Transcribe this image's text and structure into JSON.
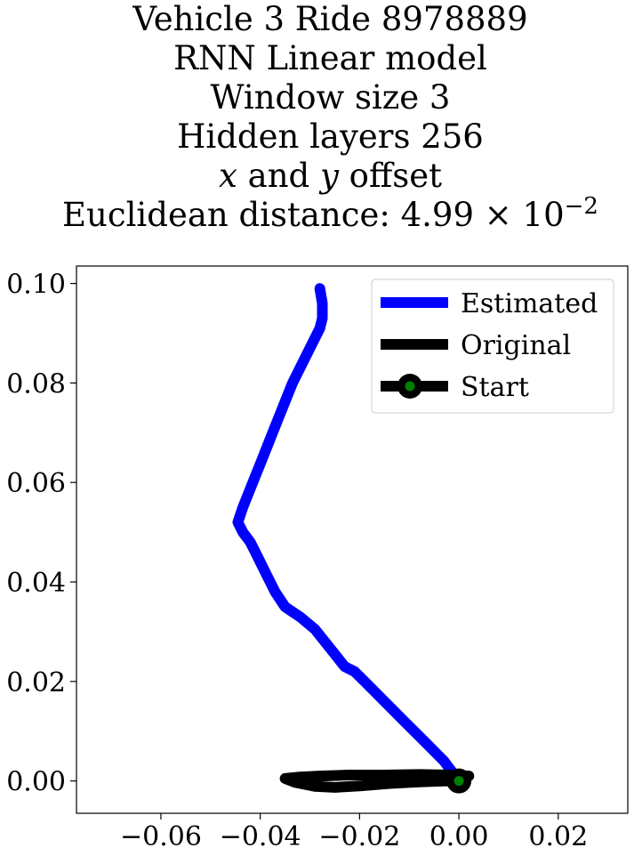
{
  "chart_data": {
    "type": "line",
    "title_lines": [
      "Vehicle 3 Ride 8978889",
      "RNN Linear model",
      "Window size 3",
      "Hidden layers 256",
      "x and y offset",
      "Euclidean distance: 4.99 × 10⁻²"
    ],
    "title_parts": {
      "offset_x": "x",
      "offset_and": " and ",
      "offset_y": "y",
      "offset_rest": " offset",
      "dist_prefix": "Euclidean distance: ",
      "dist_mantissa": "4.99",
      "dist_times": "×",
      "dist_base": "10",
      "dist_exp": "−2"
    },
    "xlim": [
      -0.077,
      0.034
    ],
    "ylim": [
      -0.0065,
      0.1035
    ],
    "x_ticks": [
      -0.06,
      -0.04,
      -0.02,
      0.0,
      0.02
    ],
    "x_tick_labels": [
      "−0.06",
      "−0.04",
      "−0.02",
      "0.00",
      "0.02"
    ],
    "y_ticks": [
      0.0,
      0.02,
      0.04,
      0.06,
      0.08,
      0.1
    ],
    "y_tick_labels": [
      "0.00",
      "0.02",
      "0.04",
      "0.06",
      "0.08",
      "0.10"
    ],
    "grid": false,
    "legend_position": "top-right",
    "series": [
      {
        "name": "Estimated",
        "color": "#0000ff",
        "x": [
          0.0,
          -0.003,
          -0.007,
          -0.011,
          -0.015,
          -0.019,
          -0.021,
          -0.023,
          -0.025,
          -0.027,
          -0.029,
          -0.032,
          -0.035,
          -0.037,
          -0.0385,
          -0.0405,
          -0.042,
          -0.0435,
          -0.0445,
          -0.0435,
          -0.0415,
          -0.0395,
          -0.0375,
          -0.0355,
          -0.0335,
          -0.032,
          -0.03,
          -0.028,
          -0.0275,
          -0.0275,
          -0.028
        ],
        "y": [
          0.0,
          0.004,
          0.008,
          0.012,
          0.016,
          0.02,
          0.022,
          0.023,
          0.0255,
          0.028,
          0.0305,
          0.033,
          0.035,
          0.038,
          0.041,
          0.045,
          0.048,
          0.05,
          0.052,
          0.055,
          0.06,
          0.065,
          0.07,
          0.075,
          0.08,
          0.083,
          0.087,
          0.091,
          0.093,
          0.096,
          0.099
        ]
      },
      {
        "name": "Original",
        "color": "#000000",
        "x": [
          0.0,
          0.002,
          -0.002,
          -0.008,
          -0.015,
          -0.022,
          -0.028,
          -0.032,
          -0.035,
          -0.033,
          -0.029,
          -0.025,
          -0.02,
          -0.014,
          -0.008,
          -0.003,
          0.0
        ],
        "y": [
          0.0,
          0.001,
          0.0012,
          0.0013,
          0.0012,
          0.0012,
          0.001,
          0.0008,
          0.0005,
          -0.0003,
          -0.0011,
          -0.0013,
          -0.001,
          -0.0005,
          -0.0002,
          0.0,
          0.0
        ]
      },
      {
        "name": "Start",
        "marker_edge_color": "#000000",
        "marker_face_color": "#008000",
        "x": [
          0.0
        ],
        "y": [
          0.0
        ]
      }
    ]
  }
}
